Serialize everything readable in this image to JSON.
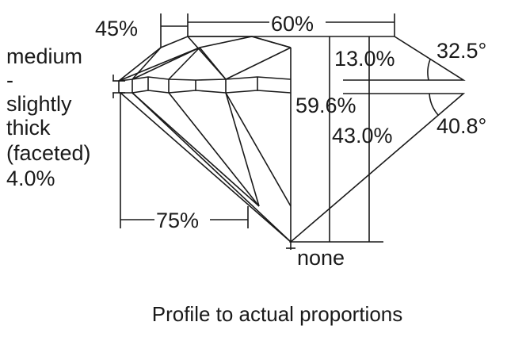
{
  "labels": {
    "crown_height_pct": "45%",
    "table_pct": "60%",
    "girdle": [
      "medium",
      "-",
      "slightly",
      "thick",
      "(faceted)",
      "4.0%"
    ],
    "crown_height_ratio": "13.0%",
    "crown_angle": "32.5°",
    "total_depth": "59.6%",
    "pavilion_depth": "43.0%",
    "pavilion_angle": "40.8°",
    "lower_half_pct": "75%",
    "culet": "none"
  },
  "caption": "Profile to actual proportions"
}
